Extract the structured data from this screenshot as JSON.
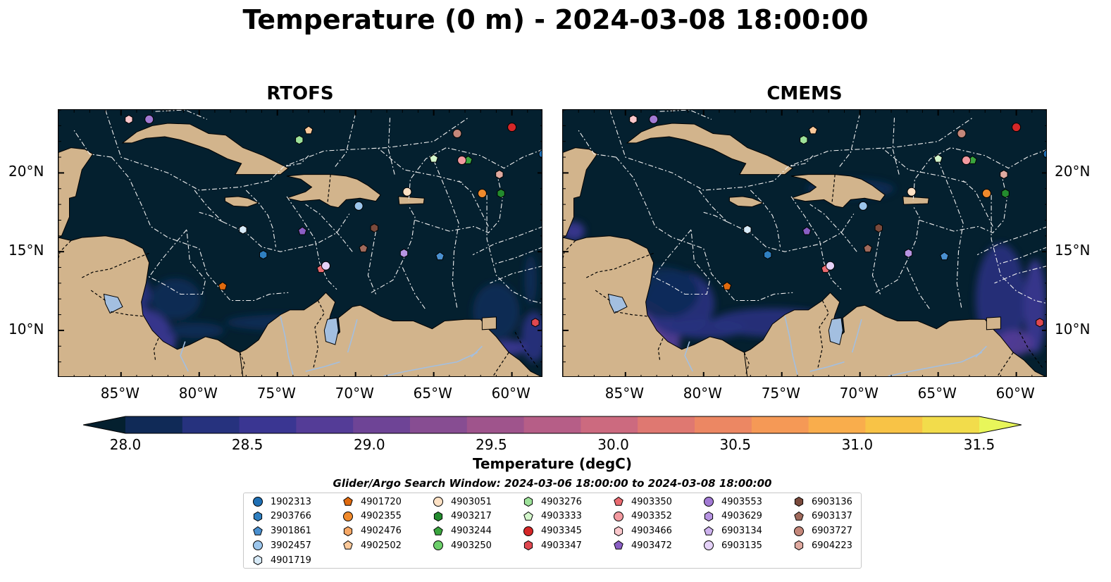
{
  "title": "Temperature (0 m) - 2024-03-08 18:00:00",
  "panels": [
    {
      "title": "RTOFS"
    },
    {
      "title": "CMEMS"
    }
  ],
  "lon_ticks": [
    "85°W",
    "80°W",
    "75°W",
    "70°W",
    "65°W",
    "60°W"
  ],
  "lat_ticks": [
    "20°N",
    "15°N",
    "10°N"
  ],
  "lon_range": [
    -89,
    -58
  ],
  "lat_range": [
    7,
    24
  ],
  "colors": {
    "ocean": "#04202f",
    "land": "#d2b48c",
    "lakes": "#a3bfe0",
    "rivers": "#a3bfe0",
    "borders": "#000000",
    "eez": "#f0f0f0"
  },
  "colorbar": {
    "label": "Temperature (degC)",
    "min": 28.0,
    "max": 31.5,
    "ticks": [
      "28.0",
      "28.5",
      "29.0",
      "29.5",
      "30.0",
      "30.5",
      "31.0",
      "31.5"
    ],
    "colors": [
      "#04202f",
      "#102a57",
      "#26327e",
      "#3a3692",
      "#543c97",
      "#6e4496",
      "#874d92",
      "#9f548c",
      "#b65e87",
      "#cc6a7f",
      "#df7871",
      "#ec8763",
      "#f59956",
      "#f9ad4c",
      "#f8c346",
      "#f2dc4b",
      "#e8f65a"
    ]
  },
  "legend": {
    "title": "Glider/Argo Search Window: 2024-03-06 18:00:00 to 2024-03-08 18:00:00",
    "items": [
      {
        "id": "1902313",
        "marker": "circle",
        "color": "#1f6fb4"
      },
      {
        "id": "2903766",
        "marker": "hexagon",
        "color": "#2f7fc0"
      },
      {
        "id": "3901861",
        "marker": "pentagon",
        "color": "#4a90d0"
      },
      {
        "id": "3902457",
        "marker": "circle",
        "color": "#9cc6ec"
      },
      {
        "id": "4901719",
        "marker": "hexagon",
        "color": "#d7eaf8"
      },
      {
        "id": "4901720",
        "marker": "pentagon",
        "color": "#e06a0e"
      },
      {
        "id": "4902355",
        "marker": "circle",
        "color": "#f08a2c"
      },
      {
        "id": "4902476",
        "marker": "hexagon",
        "color": "#f7a866"
      },
      {
        "id": "4902502",
        "marker": "pentagon",
        "color": "#fbc99a"
      },
      {
        "id": "4903051",
        "marker": "circle",
        "color": "#fde1c4"
      },
      {
        "id": "4903217",
        "marker": "hexagon",
        "color": "#238b2e"
      },
      {
        "id": "4903244",
        "marker": "pentagon",
        "color": "#3aa53e"
      },
      {
        "id": "4903250",
        "marker": "circle",
        "color": "#6ccf6a"
      },
      {
        "id": "4903276",
        "marker": "hexagon",
        "color": "#9ee29a"
      },
      {
        "id": "4903333",
        "marker": "pentagon",
        "color": "#d4f7cc"
      },
      {
        "id": "4903345",
        "marker": "circle",
        "color": "#d62728"
      },
      {
        "id": "4903347",
        "marker": "hexagon",
        "color": "#e04850"
      },
      {
        "id": "4903350",
        "marker": "pentagon",
        "color": "#ea6a70"
      },
      {
        "id": "4903352",
        "marker": "circle",
        "color": "#f39aa0"
      },
      {
        "id": "4903466",
        "marker": "hexagon",
        "color": "#fbc8cc"
      },
      {
        "id": "4903472",
        "marker": "pentagon",
        "color": "#8a5ec4"
      },
      {
        "id": "4903553",
        "marker": "circle",
        "color": "#a27ad4"
      },
      {
        "id": "4903629",
        "marker": "hexagon",
        "color": "#b794e2"
      },
      {
        "id": "6903134",
        "marker": "pentagon",
        "color": "#cdb2ee"
      },
      {
        "id": "6903135",
        "marker": "circle",
        "color": "#e5d2f8"
      },
      {
        "id": "6903136",
        "marker": "hexagon",
        "color": "#7a4a3c"
      },
      {
        "id": "6903137",
        "marker": "pentagon",
        "color": "#a06a5c"
      },
      {
        "id": "6903727",
        "marker": "circle",
        "color": "#c4877a"
      },
      {
        "id": "6904223",
        "marker": "hexagon",
        "color": "#e0aaa0"
      }
    ]
  },
  "floats": [
    {
      "id": "1902313",
      "lon": -58.0,
      "lat": 21.2
    },
    {
      "id": "2903766",
      "lon": -75.9,
      "lat": 14.8
    },
    {
      "id": "3901861",
      "lon": -64.6,
      "lat": 14.7
    },
    {
      "id": "3902457",
      "lon": -69.8,
      "lat": 17.9
    },
    {
      "id": "4901719",
      "lon": -77.2,
      "lat": 16.4
    },
    {
      "id": "4901720",
      "lon": -78.5,
      "lat": 12.8
    },
    {
      "id": "4902355",
      "lon": -61.9,
      "lat": 18.7
    },
    {
      "id": "4902502",
      "lon": -73.0,
      "lat": 22.7
    },
    {
      "id": "4903051",
      "lon": -66.7,
      "lat": 18.8
    },
    {
      "id": "4903217",
      "lon": -60.7,
      "lat": 18.7
    },
    {
      "id": "4903244",
      "lon": -62.8,
      "lat": 20.8
    },
    {
      "id": "4903276",
      "lon": -73.6,
      "lat": 22.1
    },
    {
      "id": "4903333",
      "lon": -65.0,
      "lat": 20.9
    },
    {
      "id": "4903345",
      "lon": -60.0,
      "lat": 22.9
    },
    {
      "id": "4903347",
      "lon": -58.5,
      "lat": 10.5
    },
    {
      "id": "4903350",
      "lon": -72.2,
      "lat": 13.9
    },
    {
      "id": "4903352",
      "lon": -63.2,
      "lat": 20.8
    },
    {
      "id": "4903466",
      "lon": -84.5,
      "lat": 23.4
    },
    {
      "id": "4903472",
      "lon": -73.4,
      "lat": 16.3
    },
    {
      "id": "4903553",
      "lon": -83.2,
      "lat": 23.4
    },
    {
      "id": "4903629",
      "lon": -66.9,
      "lat": 14.9
    },
    {
      "id": "6903135",
      "lon": -71.9,
      "lat": 14.1
    },
    {
      "id": "6903136",
      "lon": -68.8,
      "lat": 16.5
    },
    {
      "id": "6903137",
      "lon": -69.5,
      "lat": 15.2
    },
    {
      "id": "6903727",
      "lon": -63.5,
      "lat": 22.5
    },
    {
      "id": "6904223",
      "lon": -60.8,
      "lat": 19.9
    }
  ]
}
